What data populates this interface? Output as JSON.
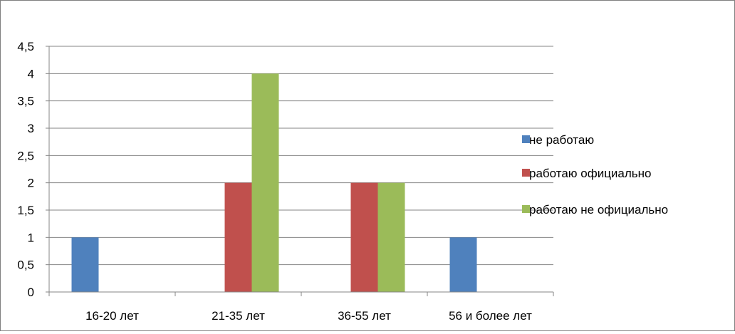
{
  "chart_data": {
    "type": "bar",
    "categories": [
      "16-20 лет",
      "21-35 лет",
      "36-55 лет",
      "56 и более лет"
    ],
    "series": [
      {
        "name": "не работаю",
        "values": [
          1,
          0,
          0,
          1
        ],
        "color": "#4f81bd"
      },
      {
        "name": "работаю официально",
        "values": [
          0,
          2,
          2,
          0
        ],
        "color": "#c0504d"
      },
      {
        "name": "работаю не официально",
        "values": [
          0,
          4,
          2,
          0
        ],
        "color": "#9bbb59"
      }
    ],
    "y_ticks": [
      "0",
      "0,5",
      "1",
      "1,5",
      "2",
      "2,5",
      "3",
      "3,5",
      "4",
      "4,5"
    ],
    "ylim": [
      0,
      4.5
    ],
    "grid": true,
    "legend_position": "right"
  }
}
